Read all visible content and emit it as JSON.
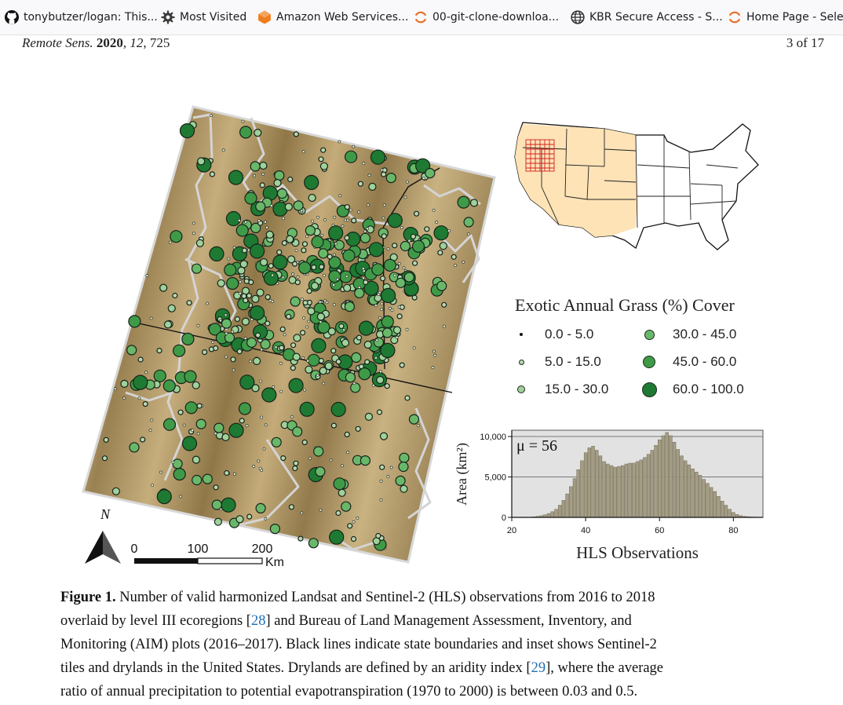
{
  "browser": {
    "bookmarks": [
      {
        "label": "tonybutzer/logan: This...",
        "icon": "github-icon"
      },
      {
        "label": "Most Visited",
        "icon": "gear-icon"
      },
      {
        "label": "Amazon Web Services...",
        "icon": "aws-icon"
      },
      {
        "label": "00-git-clone-downloa...",
        "icon": "loading-icon"
      },
      {
        "label": "KBR Secure Access - S...",
        "icon": "globe-icon"
      },
      {
        "label": "Home Page - Sele",
        "icon": "loading-icon"
      }
    ]
  },
  "page": {
    "journal": "Remote Sens.",
    "year": "2020",
    "volume": "12",
    "article": "725",
    "page_info": "3 of 17"
  },
  "figure": {
    "north_label": "N",
    "scale": {
      "ticks": [
        "0",
        "100",
        "200"
      ],
      "unit": "Km"
    },
    "legend": {
      "title": "Exotic Annual Grass (%) Cover",
      "items": [
        {
          "label": "0.0 - 5.0",
          "color": "#b8d8b0"
        },
        {
          "label": "5.0 - 15.0",
          "color": "#b8d8b0"
        },
        {
          "label": "15.0 - 30.0",
          "color": "#9fd19a"
        },
        {
          "label": "30.0 - 45.0",
          "color": "#69b86a"
        },
        {
          "label": "45.0 - 60.0",
          "color": "#3f9a48"
        },
        {
          "label": "60.0 - 100.0",
          "color": "#1e7a32"
        }
      ]
    },
    "histogram": {
      "mu_label": "μ = 56",
      "xlabel": "HLS Observations",
      "ylabel": "Area (km²)"
    }
  },
  "chart_data": {
    "type": "bar",
    "xlabel": "HLS Observations",
    "ylabel": "Area (km²)",
    "annotation": "μ = 56",
    "x_ticks": [
      20,
      40,
      60,
      80
    ],
    "y_ticks": [
      "0",
      "5,000",
      "10,000"
    ],
    "xlim": [
      20,
      88
    ],
    "ylim": [
      0,
      10000
    ],
    "grid": "horizontal",
    "x": [
      26,
      27,
      28,
      29,
      30,
      31,
      32,
      33,
      34,
      35,
      36,
      37,
      38,
      39,
      40,
      41,
      42,
      43,
      44,
      45,
      46,
      47,
      48,
      49,
      50,
      51,
      52,
      53,
      54,
      55,
      56,
      57,
      58,
      59,
      60,
      61,
      62,
      63,
      64,
      65,
      66,
      67,
      68,
      69,
      70,
      71,
      72,
      73,
      74,
      75,
      76,
      77,
      78,
      79,
      80,
      81,
      82,
      83,
      84,
      85,
      86,
      87
    ],
    "values": [
      60,
      120,
      200,
      320,
      480,
      700,
      1000,
      1500,
      2100,
      2900,
      3800,
      4800,
      5900,
      7000,
      8000,
      8600,
      8800,
      8300,
      7600,
      6900,
      6600,
      6400,
      6200,
      6300,
      6400,
      6600,
      6700,
      6700,
      6900,
      7100,
      7400,
      7800,
      8300,
      8900,
      9600,
      10100,
      10500,
      10100,
      9300,
      8400,
      7600,
      7000,
      6500,
      6000,
      5600,
      5200,
      4700,
      4200,
      3700,
      3200,
      2600,
      2000,
      1500,
      1000,
      600,
      350,
      200,
      120,
      80,
      50,
      30,
      20
    ]
  },
  "caption": {
    "label": "Figure 1.",
    "line1": " Number of valid harmonized Landsat and Sentinel-2 (HLS) observations from 2016 to 2018",
    "line2a": "overlaid by level III ecoregions [",
    "ref1": "28",
    "line2b": "] and Bureau of Land Management Assessment, Inventory, and",
    "line3": "Monitoring (AIM) plots (2016–2017). Black lines indicate state boundaries and inset shows Sentinel-2",
    "line4a": "tiles and drylands in the United States. Drylands are defined by an aridity index [",
    "ref2": "29",
    "line4b": "], where the average",
    "line5": "ratio of annual precipitation to potential evapotranspiration (1970 to 2000) is between 0.03 and 0.5."
  }
}
